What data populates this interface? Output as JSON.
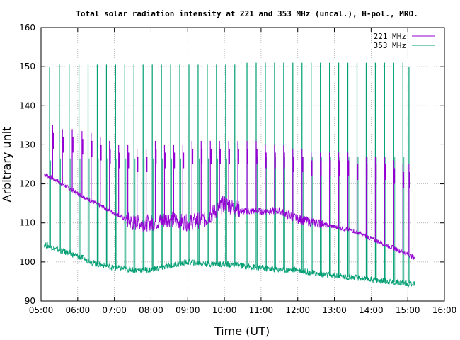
{
  "chart_data": {
    "type": "line",
    "title": "Total solar radiation intensity at 221 and 353 MHz (uncal.), H-pol., MRO.",
    "xlabel": "Time (UT)",
    "ylabel": "Arbitrary unit",
    "xlim": [
      "05:00",
      "16:00"
    ],
    "ylim": [
      90,
      160
    ],
    "x_ticks": [
      "05:00",
      "06:00",
      "07:00",
      "08:00",
      "09:00",
      "10:00",
      "11:00",
      "12:00",
      "13:00",
      "14:00",
      "15:00",
      "16:00"
    ],
    "y_ticks": [
      90,
      100,
      110,
      120,
      130,
      140,
      150,
      160
    ],
    "grid": true,
    "legend_position": "top-right",
    "series": [
      {
        "name": "221 MHz",
        "color": "#9400d3",
        "baseline": {
          "t": [
            "05:05",
            "05:30",
            "06:00",
            "06:30",
            "07:00",
            "07:30",
            "08:00",
            "08:30",
            "09:00",
            "09:30",
            "10:00",
            "10:30",
            "11:00",
            "11:30",
            "12:00",
            "12:30",
            "13:00",
            "13:30",
            "14:00",
            "14:30",
            "15:00",
            "15:12"
          ],
          "y": [
            122.5,
            120.5,
            117.5,
            115,
            112.5,
            110,
            110,
            111,
            110,
            111,
            115,
            113,
            113,
            113,
            111,
            110,
            109,
            108,
            106,
            104,
            102,
            101
          ]
        },
        "spikes": {
          "t": [
            "05:19",
            "05:35",
            "05:51",
            "06:07",
            "06:22",
            "06:37",
            "06:52",
            "07:07",
            "07:22",
            "07:37",
            "07:52",
            "08:07",
            "08:22",
            "08:37",
            "08:52",
            "09:07",
            "09:22",
            "09:37",
            "09:52",
            "10:07",
            "10:22",
            "10:37",
            "10:52",
            "11:07",
            "11:22",
            "11:37",
            "11:52",
            "12:07",
            "12:22",
            "12:37",
            "12:52",
            "13:07",
            "13:22",
            "13:37",
            "13:52",
            "14:07",
            "14:22",
            "14:37",
            "14:52",
            "15:02"
          ],
          "y": [
            135,
            134,
            134,
            133.5,
            133,
            132,
            131,
            130,
            130,
            129,
            129,
            131,
            130,
            130,
            130,
            131,
            131,
            131,
            131,
            131,
            131,
            131,
            131,
            130,
            130,
            130,
            129,
            129,
            128,
            128,
            128,
            128,
            128,
            127,
            127,
            127,
            127,
            126,
            125,
            125
          ]
        }
      },
      {
        "name": "353 MHz",
        "color": "#009e73",
        "baseline": {
          "t": [
            "05:05",
            "05:30",
            "06:00",
            "06:30",
            "07:00",
            "07:30",
            "08:00",
            "08:30",
            "09:00",
            "09:30",
            "10:00",
            "10:30",
            "11:00",
            "11:30",
            "12:00",
            "12:30",
            "13:00",
            "13:30",
            "14:00",
            "14:30",
            "15:00",
            "15:12"
          ],
          "y": [
            104.5,
            103,
            101.5,
            99.5,
            98.5,
            98,
            98,
            99,
            100,
            99.5,
            99.5,
            99,
            98.5,
            98,
            98,
            97,
            96.5,
            96,
            95.5,
            95,
            94.5,
            94.5
          ]
        },
        "spikes": {
          "t": [
            "05:14",
            "05:30",
            "05:46",
            "06:02",
            "06:17",
            "06:32",
            "06:47",
            "07:02",
            "07:17",
            "07:32",
            "07:47",
            "08:02",
            "08:17",
            "08:32",
            "08:47",
            "09:02",
            "09:17",
            "09:32",
            "09:47",
            "10:02",
            "10:17",
            "10:37",
            "10:52",
            "11:07",
            "11:22",
            "11:37",
            "11:52",
            "12:07",
            "12:22",
            "12:37",
            "12:52",
            "13:07",
            "13:22",
            "13:37",
            "13:52",
            "14:07",
            "14:22",
            "14:37",
            "14:52",
            "15:02"
          ],
          "y": [
            150,
            150.5,
            150.5,
            150.5,
            150.5,
            150.5,
            150.5,
            150.5,
            150.5,
            150.5,
            150.5,
            150.5,
            150.5,
            150.5,
            150.5,
            150.5,
            150.5,
            150.5,
            150.5,
            150.5,
            150.5,
            151,
            151,
            151,
            151,
            151,
            151,
            151,
            151,
            151,
            151,
            151,
            151,
            151,
            151,
            151,
            151,
            151,
            151,
            150
          ]
        }
      }
    ]
  }
}
